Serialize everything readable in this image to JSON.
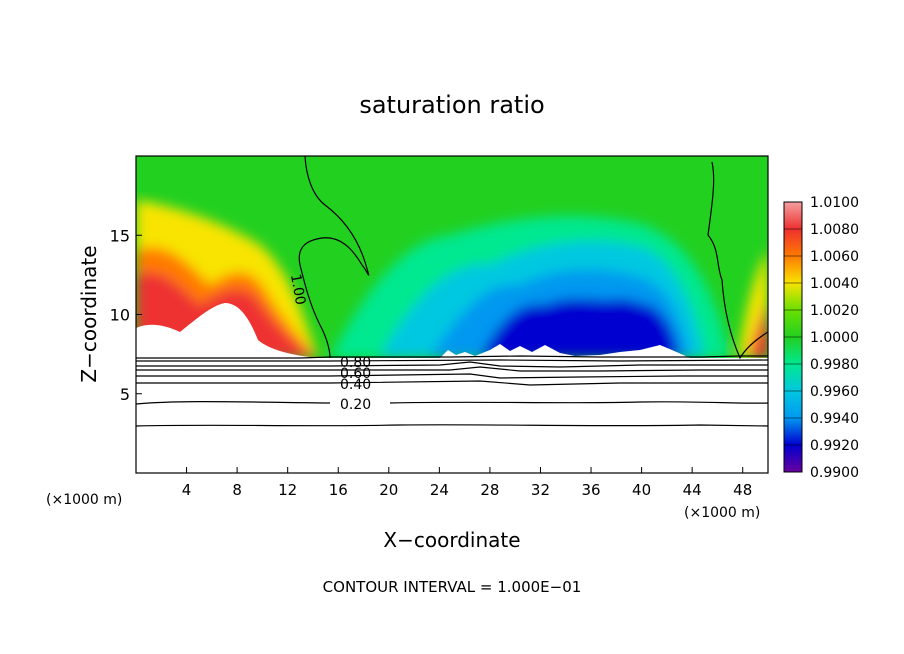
{
  "chart_data": {
    "type": "heatmap",
    "title": "saturation ratio",
    "xlabel": "X−coordinate",
    "ylabel": "Z−coordinate",
    "x_unit_left": "(×1000 m)",
    "x_unit_right": "(×1000 m)",
    "footer": "CONTOUR INTERVAL = 1.000E−01",
    "xlim": [
      0,
      50
    ],
    "ylim": [
      0,
      20
    ],
    "x_ticks": [
      4,
      8,
      12,
      16,
      20,
      24,
      28,
      32,
      36,
      40,
      44,
      48
    ],
    "y_ticks": [
      5,
      10,
      15
    ],
    "colorbar": {
      "labels": [
        "1.0100",
        "1.0080",
        "1.0060",
        "1.0040",
        "1.0020",
        "1.0000",
        "0.9980",
        "0.9960",
        "0.9940",
        "0.9920",
        "0.9900"
      ],
      "range": [
        0.99,
        1.01
      ],
      "colors": [
        "#f4a0a0",
        "#ee3030",
        "#ff7a00",
        "#f8e400",
        "#6ae000",
        "#22d020",
        "#00e890",
        "#00c8e0",
        "#0098f0",
        "#0000d0",
        "#6a00a0"
      ]
    },
    "contour_labels": [
      {
        "text": "0.80",
        "x": 17.8,
        "y": 7.0
      },
      {
        "text": "0.60",
        "x": 17.8,
        "y": 6.4
      },
      {
        "text": "0.40",
        "x": 17.8,
        "y": 5.65
      },
      {
        "text": "0.20",
        "x": 17.8,
        "y": 4.4
      },
      {
        "text": "1.00",
        "x": 13.3,
        "y": 12.4
      }
    ]
  }
}
